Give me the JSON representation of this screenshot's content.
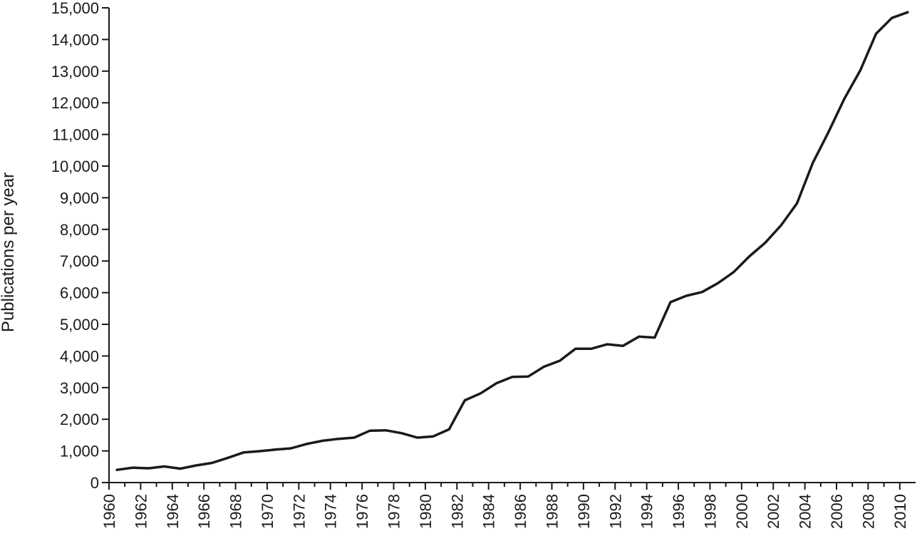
{
  "chart_data": {
    "type": "line",
    "title": "",
    "xlabel": "",
    "ylabel": "Publications per year",
    "xlim": [
      1960,
      2011
    ],
    "ylim": [
      0,
      15000
    ],
    "x_ticks": [
      1960,
      1962,
      1964,
      1966,
      1968,
      1970,
      1972,
      1974,
      1976,
      1978,
      1980,
      1982,
      1984,
      1986,
      1988,
      1990,
      1992,
      1994,
      1996,
      1998,
      2000,
      2002,
      2004,
      2006,
      2008,
      2010
    ],
    "x_tick_labels": [
      "1960",
      "1962",
      "1964",
      "1966",
      "1968",
      "1970",
      "1972",
      "1974",
      "1976",
      "1978",
      "1980",
      "1982",
      "1984",
      "1986",
      "1988",
      "1990",
      "1992",
      "1994",
      "1996",
      "1998",
      "2000",
      "2002",
      "2004",
      "2006",
      "2008",
      "2010"
    ],
    "y_ticks": [
      0,
      1000,
      2000,
      3000,
      4000,
      5000,
      6000,
      7000,
      8000,
      9000,
      10000,
      11000,
      12000,
      13000,
      14000,
      15000
    ],
    "y_tick_labels": [
      "0",
      "1,000",
      "2,000",
      "3,000",
      "4,000",
      "5,000",
      "6,000",
      "7,000",
      "8,000",
      "9,000",
      "10,000",
      "11,000",
      "12,000",
      "13,000",
      "14,000",
      "15,000"
    ],
    "grid": false,
    "legend": "none",
    "series": [
      {
        "x": [
          1960.5,
          1961.5,
          1962.5,
          1963.5,
          1964.5,
          1965.5,
          1966.5,
          1967.5,
          1968.5,
          1969.5,
          1970.5,
          1971.5,
          1972.5,
          1973.5,
          1974.5,
          1975.5,
          1976.5,
          1977.5,
          1978.5,
          1979.5,
          1980.5,
          1981.5,
          1982.5,
          1983.5,
          1984.5,
          1985.5,
          1986.5,
          1987.5,
          1988.5,
          1989.5,
          1990.5,
          1991.5,
          1992.5,
          1993.5,
          1994.5,
          1995.5,
          1996.5,
          1997.5,
          1998.5,
          1999.5,
          2000.5,
          2001.5,
          2002.5,
          2003.5,
          2004.5,
          2005.5,
          2006.5,
          2007.5,
          2008.5,
          2009.5,
          2010.5
        ],
        "values": [
          400,
          470,
          450,
          510,
          440,
          540,
          620,
          780,
          950,
          990,
          1040,
          1080,
          1220,
          1320,
          1380,
          1420,
          1640,
          1650,
          1560,
          1420,
          1460,
          1680,
          2600,
          2820,
          3140,
          3340,
          3350,
          3660,
          3850,
          4230,
          4230,
          4370,
          4320,
          4610,
          4580,
          5700,
          5900,
          6020,
          6300,
          6650,
          7150,
          7580,
          8130,
          8820,
          10100,
          11080,
          12130,
          13020,
          14180,
          14680,
          14860
        ]
      }
    ]
  }
}
